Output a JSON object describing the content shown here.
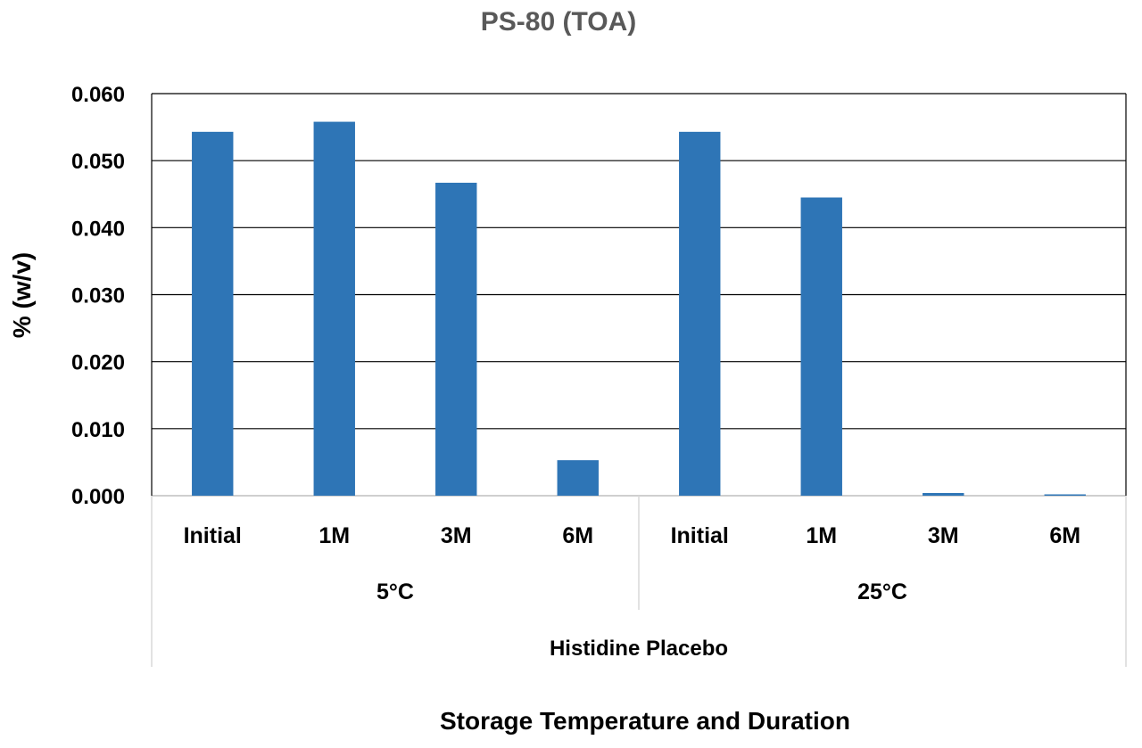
{
  "chart_data": {
    "type": "bar",
    "title": "PS-80 (TOA)",
    "xlabel": "Storage Temperature and Duration",
    "ylabel": "% (w/v)",
    "ylim": [
      0,
      0.06
    ],
    "yticks": [
      "0.000",
      "0.010",
      "0.020",
      "0.030",
      "0.040",
      "0.050",
      "0.060"
    ],
    "grid": true,
    "legend": "none",
    "bar_color": "#2e75b6",
    "super_group": "Histidine Placebo",
    "groups": [
      {
        "label": "5°C",
        "categories": [
          "Initial",
          "1M",
          "3M",
          "6M"
        ],
        "values": [
          0.0543,
          0.0558,
          0.0467,
          0.0053
        ]
      },
      {
        "label": "25°C",
        "categories": [
          "Initial",
          "1M",
          "3M",
          "6M"
        ],
        "values": [
          0.0543,
          0.0445,
          0.0004,
          0.0002
        ]
      }
    ]
  }
}
